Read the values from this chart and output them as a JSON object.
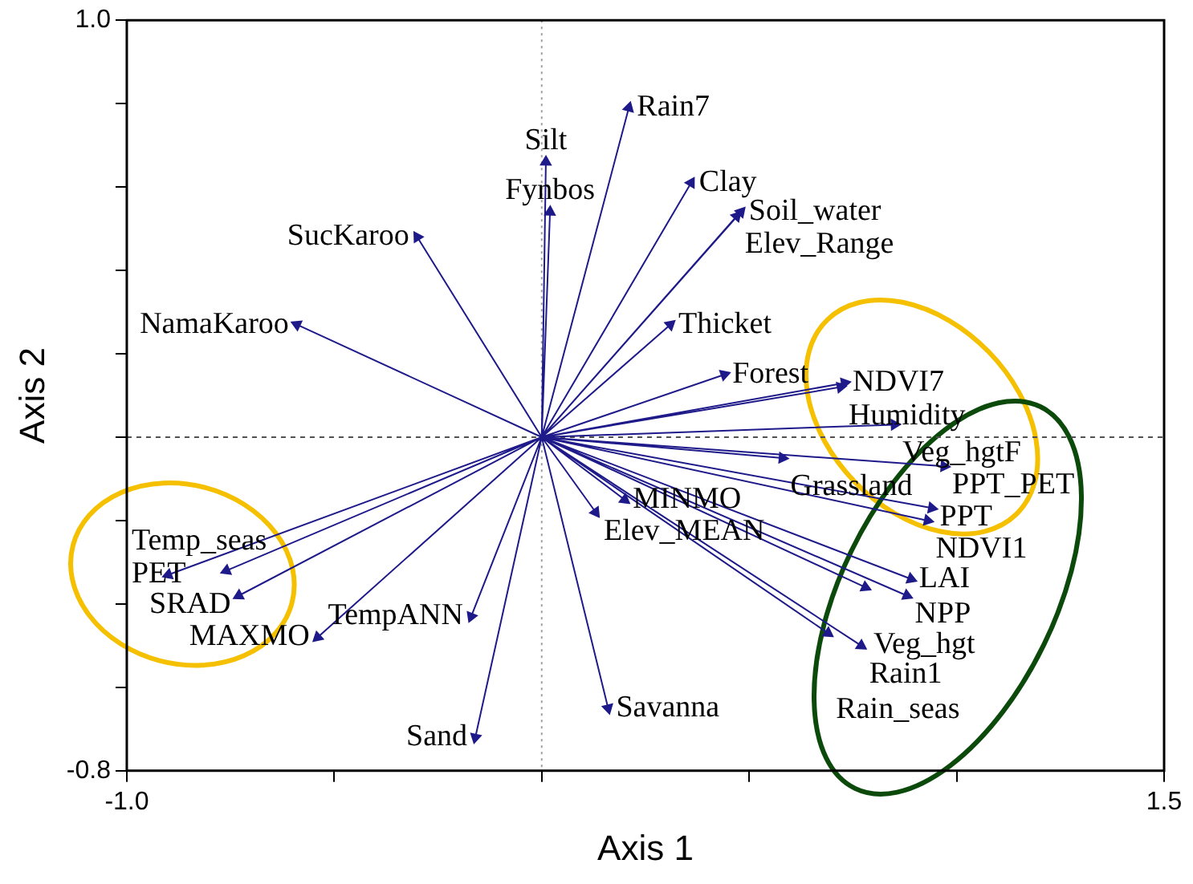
{
  "chart_data": {
    "type": "line",
    "xlabel": "Axis 1",
    "ylabel": "Axis 2",
    "marker": "triangle",
    "grid": false,
    "legend": false,
    "xlim": [
      -1.0,
      1.5
    ],
    "ylim": [
      -0.8,
      1.0
    ],
    "xticks": [
      {
        "value": -1.0,
        "label": "-1.0"
      },
      {
        "value": -0.5,
        "label": null
      },
      {
        "value": 0,
        "label": null
      },
      {
        "value": 0.5,
        "label": null
      },
      {
        "value": 1.0,
        "label": null
      },
      {
        "value": 1.5,
        "label": "1.5"
      }
    ],
    "yticks": [
      {
        "value": -0.8,
        "label": "-0.8"
      },
      {
        "value": -0.6,
        "label": null
      },
      {
        "value": -0.4,
        "label": null
      },
      {
        "value": -0.2,
        "label": null
      },
      {
        "value": 0,
        "label": null
      },
      {
        "value": 0.2,
        "label": null
      },
      {
        "value": 0.4,
        "label": null
      },
      {
        "value": 0.6,
        "label": null
      },
      {
        "value": 0.8,
        "label": null
      },
      {
        "value": 1.0,
        "label": "1.0"
      }
    ],
    "ref_lines": [
      {
        "axis": "x",
        "value": 0,
        "line_style": "dotted",
        "color": "#a0a0a0"
      },
      {
        "axis": "y",
        "value": 0,
        "line_style": "dashed",
        "color": "#505050"
      }
    ],
    "series": [
      {
        "color": "#1f1a8a",
        "x": [
          0,
          0.21,
          null,
          0,
          0.01,
          null,
          0,
          0.36,
          null,
          0,
          0.02,
          null,
          0,
          0.48,
          null,
          0,
          0.47,
          null,
          0,
          -0.3,
          null,
          0,
          -0.59,
          null,
          0,
          0.31,
          null,
          0,
          0.44,
          null,
          0,
          0.73,
          null,
          0,
          0.72,
          null,
          0,
          0.85,
          null,
          0,
          0.58,
          null,
          0,
          0.97,
          null,
          0,
          0.94,
          null,
          0,
          0.93,
          null,
          0,
          0.89,
          null,
          0,
          0.88,
          null,
          0,
          0.78,
          null,
          0,
          0.77,
          null,
          0,
          0.69,
          null,
          0,
          0.2,
          null,
          0,
          0.13,
          null,
          0,
          -0.17,
          null,
          0,
          -0.16,
          null,
          0,
          0.16,
          null,
          0,
          -0.54,
          null,
          0,
          -0.9,
          null,
          0,
          -0.76,
          null,
          0,
          -0.73
        ],
        "values": [
          0,
          0.79,
          null,
          0,
          0.66,
          null,
          0,
          0.61,
          null,
          0,
          0.54,
          null,
          0,
          0.54,
          null,
          0,
          0.53,
          null,
          0,
          0.48,
          null,
          0,
          0.27,
          null,
          0,
          0.27,
          null,
          0,
          0.15,
          null,
          0,
          0.13,
          null,
          0,
          0.12,
          null,
          0,
          0.03,
          null,
          0,
          -0.05,
          null,
          0,
          -0.07,
          null,
          0,
          -0.17,
          null,
          0,
          -0.2,
          null,
          0,
          -0.34,
          null,
          0,
          -0.38,
          null,
          0,
          -0.36,
          null,
          0,
          -0.5,
          null,
          0,
          -0.47,
          null,
          0,
          -0.15,
          null,
          0,
          -0.18,
          null,
          0,
          -0.43,
          null,
          0,
          -0.72,
          null,
          0,
          -0.65,
          null,
          0,
          -0.48,
          null,
          0,
          -0.33,
          null,
          0,
          -0.32,
          null,
          0,
          -0.38
        ],
        "value_labels": [
          null,
          "Rain7",
          null,
          null,
          "Silt",
          null,
          null,
          "Clay",
          null,
          null,
          "Fynbos",
          null,
          null,
          "Soil_water",
          null,
          null,
          "Elev_Range",
          null,
          null,
          "SucKaroo",
          null,
          null,
          "NamaKaroo",
          null,
          null,
          "Thicket",
          null,
          null,
          "Forest",
          null,
          null,
          "NDVI7",
          null,
          null,
          "Humidity",
          null,
          null,
          "Veg_hgtF",
          null,
          null,
          "Grassland",
          null,
          null,
          "PPT_PET",
          null,
          null,
          "PPT",
          null,
          null,
          "NDVI1",
          null,
          null,
          "LAI",
          null,
          null,
          "NPP",
          null,
          null,
          "Veg_hgt",
          null,
          null,
          "Rain1",
          null,
          null,
          "Rain_seas",
          null,
          null,
          "MINMO",
          null,
          null,
          "Elev_MEAN",
          null,
          null,
          "TempANN",
          null,
          null,
          "Sand",
          null,
          null,
          "Savanna",
          null,
          null,
          "MAXMO",
          null,
          null,
          "PET",
          null,
          null,
          "Temp_seas",
          null,
          null,
          "SRAD"
        ]
      }
    ]
  }
}
